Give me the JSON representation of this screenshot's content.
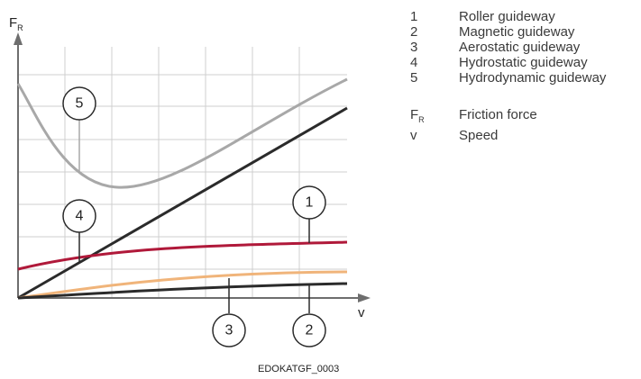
{
  "axes": {
    "y_symbol": "F",
    "y_subscript": "R",
    "x_symbol": "v"
  },
  "callouts": [
    "1",
    "2",
    "3",
    "4",
    "5"
  ],
  "legend": {
    "guideways": [
      {
        "key": "1",
        "label": "Roller guideway"
      },
      {
        "key": "2",
        "label": "Magnetic guideway"
      },
      {
        "key": "3",
        "label": "Aerostatic guideway"
      },
      {
        "key": "4",
        "label": "Hydrostatic guideway"
      },
      {
        "key": "5",
        "label": "Hydrodynamic guideway"
      }
    ],
    "symbols": [
      {
        "key": "F",
        "sub": "R",
        "label": "Friction force"
      },
      {
        "key": "v",
        "sub": "",
        "label": "Speed"
      }
    ]
  },
  "figure_code": "EDOKATGF_0003",
  "colors": {
    "roller": "#b0193a",
    "magnetic": "#2b2b2b",
    "aerostatic": "#f0b47a",
    "hydrostatic": "#2b2b2b",
    "hydrodynamic": "#a8a8a8",
    "grid": "#cfcfcf",
    "axis": "#6e6e6e"
  }
}
